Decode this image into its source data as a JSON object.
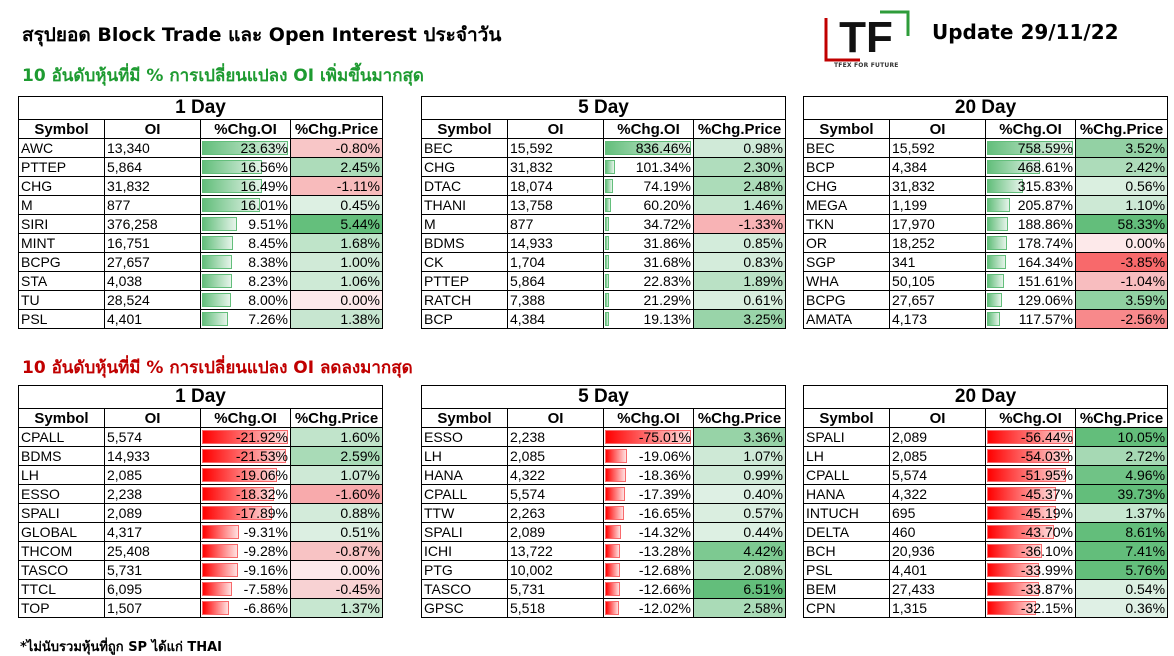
{
  "header": {
    "title": "สรุปยอด Block Trade และ Open Interest ประจำวัน",
    "update": "Update 29/11/22",
    "logo_letters": "TF",
    "logo_tagline": "TFEX FOR FUTURE"
  },
  "sections": {
    "increase_title": "10 อันดับหุ้นที่มี % การเปลี่ยนแปลง OI เพิ่มขึ้นมากสุด",
    "decrease_title": "10 อันดับหุ้นที่มี % การเปลี่ยนแปลง OI ลดลงมากสุด"
  },
  "columns": {
    "symbol": "Symbol",
    "oi": "OI",
    "chg_oi": "%Chg.OI",
    "chg_price": "%Chg.Price"
  },
  "colors": {
    "up": "#1e9b31",
    "down": "#c00000",
    "bar_pos": "#63be7b",
    "bar_neg": "#ff0000",
    "price_green": "#63be7b",
    "price_red": "#f8696b"
  },
  "tables": [
    {
      "period": "1 Day",
      "rows": [
        {
          "symbol": "AWC",
          "oi": "13,340",
          "chg_oi": "23.63%",
          "chg_price": "-0.80%",
          "oi_val": 23.63,
          "price_val": -0.8
        },
        {
          "symbol": "PTTEP",
          "oi": "5,864",
          "chg_oi": "16.56%",
          "chg_price": "2.45%",
          "oi_val": 16.56,
          "price_val": 2.45
        },
        {
          "symbol": "CHG",
          "oi": "31,832",
          "chg_oi": "16.49%",
          "chg_price": "-1.11%",
          "oi_val": 16.49,
          "price_val": -1.11
        },
        {
          "symbol": "M",
          "oi": "877",
          "chg_oi": "16.01%",
          "chg_price": "0.45%",
          "oi_val": 16.01,
          "price_val": 0.45
        },
        {
          "symbol": "SIRI",
          "oi": "376,258",
          "chg_oi": "9.51%",
          "chg_price": "5.44%",
          "oi_val": 9.51,
          "price_val": 5.44
        },
        {
          "symbol": "MINT",
          "oi": "16,751",
          "chg_oi": "8.45%",
          "chg_price": "1.68%",
          "oi_val": 8.45,
          "price_val": 1.68
        },
        {
          "symbol": "BCPG",
          "oi": "27,657",
          "chg_oi": "8.38%",
          "chg_price": "1.00%",
          "oi_val": 8.38,
          "price_val": 1.0
        },
        {
          "symbol": "STA",
          "oi": "4,038",
          "chg_oi": "8.23%",
          "chg_price": "1.06%",
          "oi_val": 8.23,
          "price_val": 1.06
        },
        {
          "symbol": "TU",
          "oi": "28,524",
          "chg_oi": "8.00%",
          "chg_price": "0.00%",
          "oi_val": 8.0,
          "price_val": 0.0
        },
        {
          "symbol": "PSL",
          "oi": "4,401",
          "chg_oi": "7.26%",
          "chg_price": "1.38%",
          "oi_val": 7.26,
          "price_val": 1.38
        }
      ]
    },
    {
      "period": "5 Day",
      "rows": [
        {
          "symbol": "BEC",
          "oi": "15,592",
          "chg_oi": "836.46%",
          "chg_price": "0.98%",
          "oi_val": 836.46,
          "price_val": 0.98
        },
        {
          "symbol": "CHG",
          "oi": "31,832",
          "chg_oi": "101.34%",
          "chg_price": "2.30%",
          "oi_val": 101.34,
          "price_val": 2.3
        },
        {
          "symbol": "DTAC",
          "oi": "18,074",
          "chg_oi": "74.19%",
          "chg_price": "2.48%",
          "oi_val": 74.19,
          "price_val": 2.48
        },
        {
          "symbol": "THANI",
          "oi": "13,758",
          "chg_oi": "60.20%",
          "chg_price": "1.46%",
          "oi_val": 60.2,
          "price_val": 1.46
        },
        {
          "symbol": "M",
          "oi": "877",
          "chg_oi": "34.72%",
          "chg_price": "-1.33%",
          "oi_val": 34.72,
          "price_val": -1.33
        },
        {
          "symbol": "BDMS",
          "oi": "14,933",
          "chg_oi": "31.86%",
          "chg_price": "0.85%",
          "oi_val": 31.86,
          "price_val": 0.85
        },
        {
          "symbol": "CK",
          "oi": "1,704",
          "chg_oi": "31.68%",
          "chg_price": "0.83%",
          "oi_val": 31.68,
          "price_val": 0.83
        },
        {
          "symbol": "PTTEP",
          "oi": "5,864",
          "chg_oi": "22.83%",
          "chg_price": "1.89%",
          "oi_val": 22.83,
          "price_val": 1.89
        },
        {
          "symbol": "RATCH",
          "oi": "7,388",
          "chg_oi": "21.29%",
          "chg_price": "0.61%",
          "oi_val": 21.29,
          "price_val": 0.61
        },
        {
          "symbol": "BCP",
          "oi": "4,384",
          "chg_oi": "19.13%",
          "chg_price": "3.25%",
          "oi_val": 19.13,
          "price_val": 3.25
        }
      ]
    },
    {
      "period": "20 Day",
      "rows": [
        {
          "symbol": "BEC",
          "oi": "15,592",
          "chg_oi": "758.59%",
          "chg_price": "3.52%",
          "oi_val": 758.59,
          "price_val": 3.52
        },
        {
          "symbol": "BCP",
          "oi": "4,384",
          "chg_oi": "468.61%",
          "chg_price": "2.42%",
          "oi_val": 468.61,
          "price_val": 2.42
        },
        {
          "symbol": "CHG",
          "oi": "31,832",
          "chg_oi": "315.83%",
          "chg_price": "0.56%",
          "oi_val": 315.83,
          "price_val": 0.56
        },
        {
          "symbol": "MEGA",
          "oi": "1,199",
          "chg_oi": "205.87%",
          "chg_price": "1.10%",
          "oi_val": 205.87,
          "price_val": 1.1
        },
        {
          "symbol": "TKN",
          "oi": "17,970",
          "chg_oi": "188.86%",
          "chg_price": "58.33%",
          "oi_val": 188.86,
          "price_val": 58.33
        },
        {
          "symbol": "OR",
          "oi": "18,252",
          "chg_oi": "178.74%",
          "chg_price": "0.00%",
          "oi_val": 178.74,
          "price_val": 0.0
        },
        {
          "symbol": "SGP",
          "oi": "341",
          "chg_oi": "164.34%",
          "chg_price": "-3.85%",
          "oi_val": 164.34,
          "price_val": -3.85
        },
        {
          "symbol": "WHA",
          "oi": "50,105",
          "chg_oi": "151.61%",
          "chg_price": "-1.04%",
          "oi_val": 151.61,
          "price_val": -1.04
        },
        {
          "symbol": "BCPG",
          "oi": "27,657",
          "chg_oi": "129.06%",
          "chg_price": "3.59%",
          "oi_val": 129.06,
          "price_val": 3.59
        },
        {
          "symbol": "AMATA",
          "oi": "4,173",
          "chg_oi": "117.57%",
          "chg_price": "-2.56%",
          "oi_val": 117.57,
          "price_val": -2.56
        }
      ]
    },
    {
      "period": "1 Day",
      "rows": [
        {
          "symbol": "CPALL",
          "oi": "5,574",
          "chg_oi": "-21.92%",
          "chg_price": "1.60%",
          "oi_val": -21.92,
          "price_val": 1.6
        },
        {
          "symbol": "BDMS",
          "oi": "14,933",
          "chg_oi": "-21.53%",
          "chg_price": "2.59%",
          "oi_val": -21.53,
          "price_val": 2.59
        },
        {
          "symbol": "LH",
          "oi": "2,085",
          "chg_oi": "-19.06%",
          "chg_price": "1.07%",
          "oi_val": -19.06,
          "price_val": 1.07
        },
        {
          "symbol": "ESSO",
          "oi": "2,238",
          "chg_oi": "-18.32%",
          "chg_price": "-1.60%",
          "oi_val": -18.32,
          "price_val": -1.6
        },
        {
          "symbol": "SPALI",
          "oi": "2,089",
          "chg_oi": "-17.89%",
          "chg_price": "0.88%",
          "oi_val": -17.89,
          "price_val": 0.88
        },
        {
          "symbol": "GLOBAL",
          "oi": "4,317",
          "chg_oi": "-9.31%",
          "chg_price": "0.51%",
          "oi_val": -9.31,
          "price_val": 0.51
        },
        {
          "symbol": "THCOM",
          "oi": "25,408",
          "chg_oi": "-9.28%",
          "chg_price": "-0.87%",
          "oi_val": -9.28,
          "price_val": -0.87
        },
        {
          "symbol": "TASCO",
          "oi": "5,731",
          "chg_oi": "-9.16%",
          "chg_price": "0.00%",
          "oi_val": -9.16,
          "price_val": 0.0
        },
        {
          "symbol": "TTCL",
          "oi": "6,095",
          "chg_oi": "-7.58%",
          "chg_price": "-0.45%",
          "oi_val": -7.58,
          "price_val": -0.45
        },
        {
          "symbol": "TOP",
          "oi": "1,507",
          "chg_oi": "-6.86%",
          "chg_price": "1.37%",
          "oi_val": -6.86,
          "price_val": 1.37
        }
      ]
    },
    {
      "period": "5 Day",
      "rows": [
        {
          "symbol": "ESSO",
          "oi": "2,238",
          "chg_oi": "-75.01%",
          "chg_price": "3.36%",
          "oi_val": -75.01,
          "price_val": 3.36
        },
        {
          "symbol": "LH",
          "oi": "2,085",
          "chg_oi": "-19.06%",
          "chg_price": "1.07%",
          "oi_val": -19.06,
          "price_val": 1.07
        },
        {
          "symbol": "HANA",
          "oi": "4,322",
          "chg_oi": "-18.36%",
          "chg_price": "0.99%",
          "oi_val": -18.36,
          "price_val": 0.99
        },
        {
          "symbol": "CPALL",
          "oi": "5,574",
          "chg_oi": "-17.39%",
          "chg_price": "0.40%",
          "oi_val": -17.39,
          "price_val": 0.4
        },
        {
          "symbol": "TTW",
          "oi": "2,263",
          "chg_oi": "-16.65%",
          "chg_price": "0.57%",
          "oi_val": -16.65,
          "price_val": 0.57
        },
        {
          "symbol": "SPALI",
          "oi": "2,089",
          "chg_oi": "-14.32%",
          "chg_price": "0.44%",
          "oi_val": -14.32,
          "price_val": 0.44
        },
        {
          "symbol": "ICHI",
          "oi": "13,722",
          "chg_oi": "-13.28%",
          "chg_price": "4.42%",
          "oi_val": -13.28,
          "price_val": 4.42
        },
        {
          "symbol": "PTG",
          "oi": "10,002",
          "chg_oi": "-12.68%",
          "chg_price": "2.08%",
          "oi_val": -12.68,
          "price_val": 2.08
        },
        {
          "symbol": "TASCO",
          "oi": "5,731",
          "chg_oi": "-12.66%",
          "chg_price": "6.51%",
          "oi_val": -12.66,
          "price_val": 6.51
        },
        {
          "symbol": "GPSC",
          "oi": "5,518",
          "chg_oi": "-12.02%",
          "chg_price": "2.58%",
          "oi_val": -12.02,
          "price_val": 2.58
        }
      ]
    },
    {
      "period": "20 Day",
      "rows": [
        {
          "symbol": "SPALI",
          "oi": "2,089",
          "chg_oi": "-56.44%",
          "chg_price": "10.05%",
          "oi_val": -56.44,
          "price_val": 10.05
        },
        {
          "symbol": "LH",
          "oi": "2,085",
          "chg_oi": "-54.03%",
          "chg_price": "2.72%",
          "oi_val": -54.03,
          "price_val": 2.72
        },
        {
          "symbol": "CPALL",
          "oi": "5,574",
          "chg_oi": "-51.95%",
          "chg_price": "4.96%",
          "oi_val": -51.95,
          "price_val": 4.96
        },
        {
          "symbol": "HANA",
          "oi": "4,322",
          "chg_oi": "-45.37%",
          "chg_price": "39.73%",
          "oi_val": -45.37,
          "price_val": 39.73
        },
        {
          "symbol": "INTUCH",
          "oi": "695",
          "chg_oi": "-45.19%",
          "chg_price": "1.37%",
          "oi_val": -45.19,
          "price_val": 1.37
        },
        {
          "symbol": "DELTA",
          "oi": "460",
          "chg_oi": "-43.70%",
          "chg_price": "8.61%",
          "oi_val": -43.7,
          "price_val": 8.61
        },
        {
          "symbol": "BCH",
          "oi": "20,936",
          "chg_oi": "-36.10%",
          "chg_price": "7.41%",
          "oi_val": -36.1,
          "price_val": 7.41
        },
        {
          "symbol": "PSL",
          "oi": "4,401",
          "chg_oi": "-33.99%",
          "chg_price": "5.76%",
          "oi_val": -33.99,
          "price_val": 5.76
        },
        {
          "symbol": "BEM",
          "oi": "27,433",
          "chg_oi": "-33.87%",
          "chg_price": "0.54%",
          "oi_val": -33.87,
          "price_val": 0.54
        },
        {
          "symbol": "CPN",
          "oi": "1,315",
          "chg_oi": "-32.15%",
          "chg_price": "0.36%",
          "oi_val": -32.15,
          "price_val": 0.36
        }
      ]
    }
  ],
  "footnote": "*ไม่นับรวมหุ้นที่ถูก SP ได้แก่ THAI"
}
